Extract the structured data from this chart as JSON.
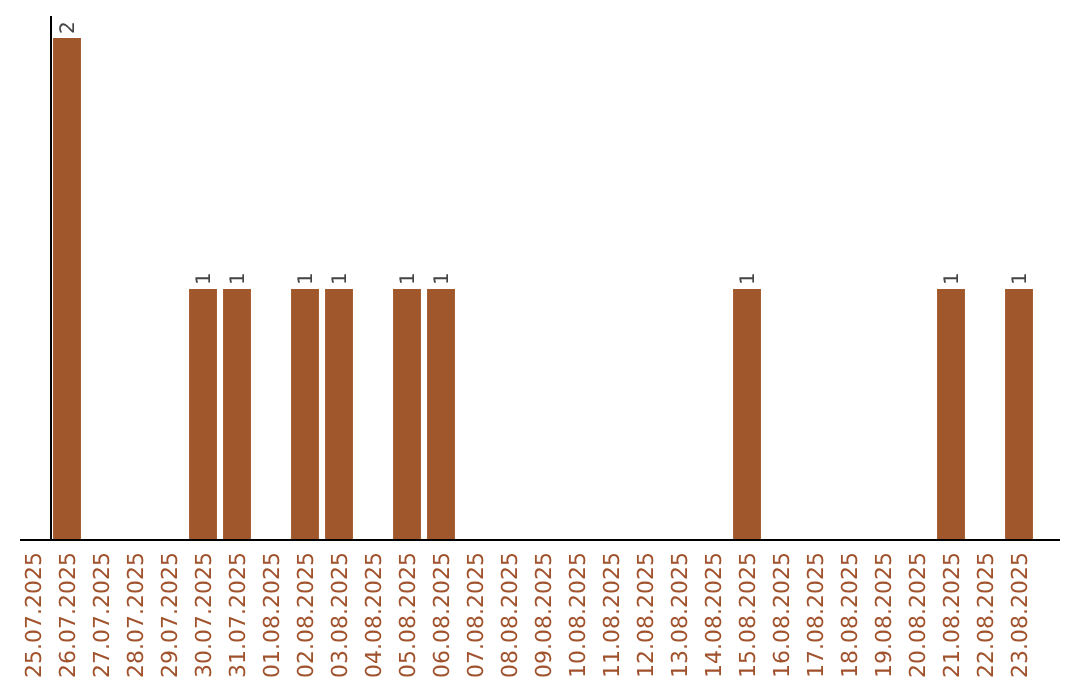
{
  "chart_data": {
    "type": "bar",
    "categories": [
      "25.07.2025",
      "26.07.2025",
      "27.07.2025",
      "28.07.2025",
      "29.07.2025",
      "30.07.2025",
      "31.07.2025",
      "01.08.2025",
      "02.08.2025",
      "03.08.2025",
      "04.08.2025",
      "05.08.2025",
      "06.08.2025",
      "07.08.2025",
      "08.08.2025",
      "09.08.2025",
      "10.08.2025",
      "11.08.2025",
      "12.08.2025",
      "13.08.2025",
      "14.08.2025",
      "15.08.2025",
      "16.08.2025",
      "17.08.2025",
      "18.08.2025",
      "19.08.2025",
      "20.08.2025",
      "21.08.2025",
      "22.08.2025",
      "23.08.2025"
    ],
    "values": [
      0,
      2,
      0,
      0,
      0,
      1,
      1,
      0,
      1,
      1,
      0,
      1,
      1,
      0,
      0,
      0,
      0,
      0,
      0,
      0,
      0,
      1,
      0,
      0,
      0,
      0,
      0,
      1,
      0,
      1
    ],
    "value_labels": [
      null,
      "2",
      null,
      null,
      null,
      "1",
      "1",
      null,
      "1",
      "1",
      null,
      "1",
      "1",
      null,
      null,
      null,
      null,
      null,
      null,
      null,
      null,
      "1",
      null,
      null,
      null,
      null,
      null,
      "1",
      null,
      "1"
    ],
    "color": "#a0572b",
    "grid": false
  }
}
